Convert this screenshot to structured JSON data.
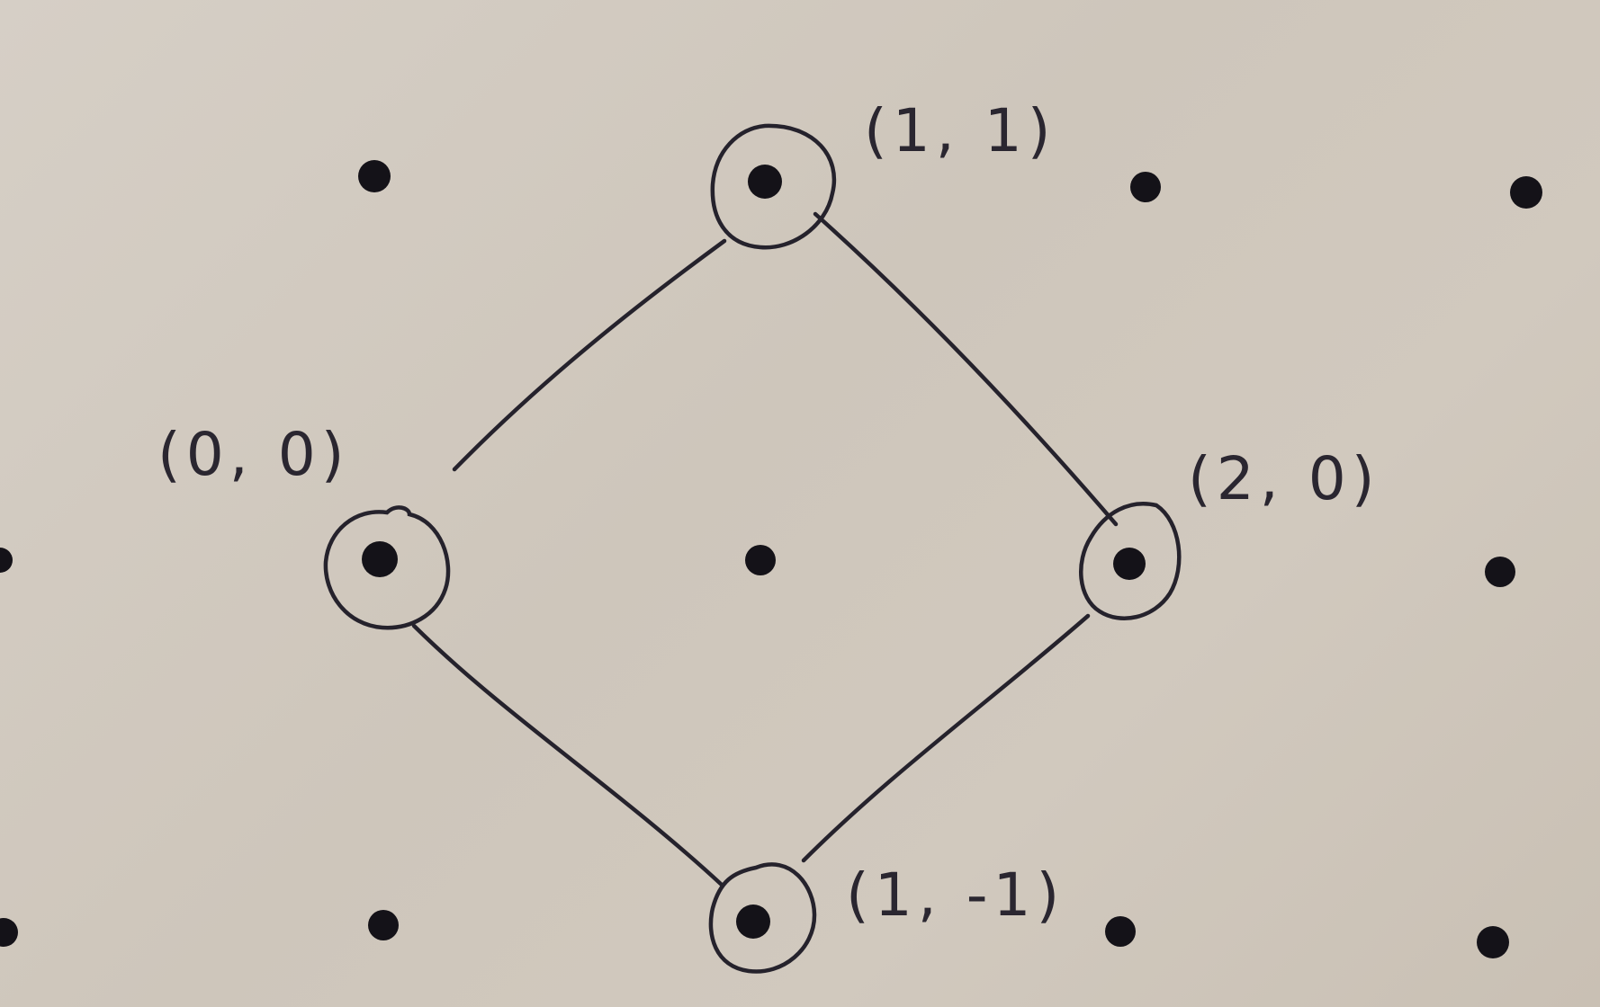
{
  "diagram": {
    "grid_dots": [
      {
        "id": "dot-r0c0"
      },
      {
        "id": "dot-r0c1"
      },
      {
        "id": "dot-r0c2"
      },
      {
        "id": "dot-r0c3"
      },
      {
        "id": "dot-r1c0"
      },
      {
        "id": "dot-r1c1"
      },
      {
        "id": "dot-r1c2"
      },
      {
        "id": "dot-r1c3"
      },
      {
        "id": "dot-r2c0"
      },
      {
        "id": "dot-r2c1"
      },
      {
        "id": "dot-r2c2"
      },
      {
        "id": "dot-r2c3"
      }
    ],
    "vertices": [
      {
        "id": "vertex-top",
        "label": "(1, 1)"
      },
      {
        "id": "vertex-left",
        "label": "(0, 0)"
      },
      {
        "id": "vertex-right",
        "label": "(2, 0)"
      },
      {
        "id": "vertex-bottom",
        "label": "(1, -1)"
      }
    ],
    "edges": [
      {
        "from": "vertex-left",
        "to": "vertex-top"
      },
      {
        "from": "vertex-top",
        "to": "vertex-right"
      },
      {
        "from": "vertex-right",
        "to": "vertex-bottom"
      },
      {
        "from": "vertex-bottom",
        "to": "vertex-left"
      }
    ]
  }
}
